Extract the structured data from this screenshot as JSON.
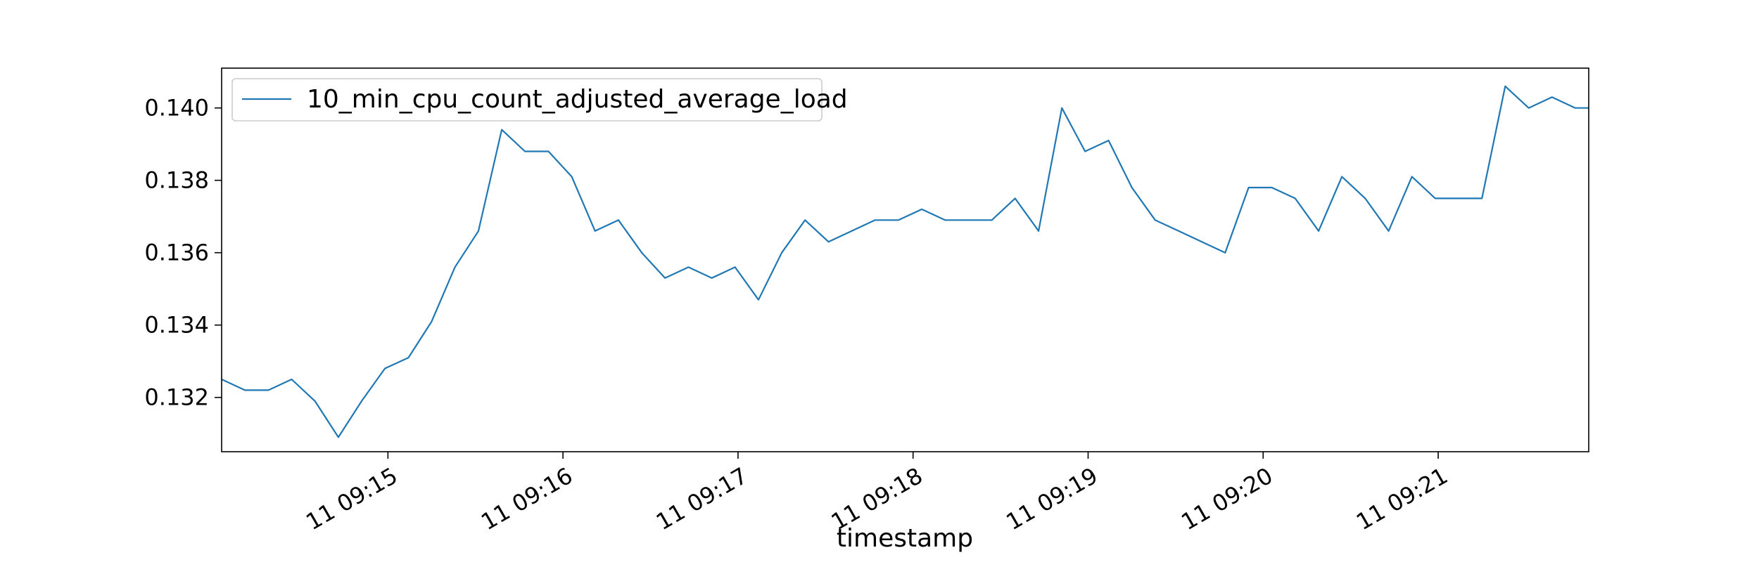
{
  "chart_data": {
    "type": "line",
    "title": "",
    "xlabel": "timestamp",
    "ylabel": "",
    "grid": false,
    "legend": {
      "position": "top-left",
      "entries": [
        "10_min_cpu_count_adjusted_average_load"
      ]
    },
    "x_unit": "minutes after 09:14 (day 11)",
    "xlim": [
      0.05,
      7.86
    ],
    "ylim": [
      0.1305,
      0.1411
    ],
    "x_ticks": [
      {
        "value": 1.0,
        "label": "11 09:15"
      },
      {
        "value": 2.0,
        "label": "11 09:16"
      },
      {
        "value": 3.0,
        "label": "11 09:17"
      },
      {
        "value": 4.0,
        "label": "11 09:18"
      },
      {
        "value": 5.0,
        "label": "11 09:19"
      },
      {
        "value": 6.0,
        "label": "11 09:20"
      },
      {
        "value": 7.0,
        "label": "11 09:21"
      }
    ],
    "y_ticks": [
      {
        "value": 0.132,
        "label": "0.132"
      },
      {
        "value": 0.134,
        "label": "0.134"
      },
      {
        "value": 0.136,
        "label": "0.136"
      },
      {
        "value": 0.138,
        "label": "0.138"
      },
      {
        "value": 0.14,
        "label": "0.140"
      }
    ],
    "series": [
      {
        "name": "10_min_cpu_count_adjusted_average_load",
        "color": "#1f77b4",
        "x": [
          0.05,
          0.183,
          0.317,
          0.45,
          0.583,
          0.717,
          0.85,
          0.983,
          1.117,
          1.25,
          1.383,
          1.517,
          1.65,
          1.783,
          1.917,
          2.05,
          2.183,
          2.317,
          2.45,
          2.583,
          2.717,
          2.85,
          2.983,
          3.117,
          3.25,
          3.383,
          3.517,
          3.65,
          3.783,
          3.917,
          4.05,
          4.183,
          4.317,
          4.45,
          4.583,
          4.717,
          4.85,
          4.983,
          5.117,
          5.25,
          5.383,
          5.517,
          5.65,
          5.783,
          5.917,
          6.05,
          6.183,
          6.317,
          6.45,
          6.583,
          6.717,
          6.85,
          6.983,
          7.117,
          7.25,
          7.383,
          7.517,
          7.65,
          7.783,
          7.86
        ],
        "values": [
          0.1325,
          0.1322,
          0.1322,
          0.1325,
          0.1319,
          0.1309,
          0.1319,
          0.1328,
          0.1331,
          0.1341,
          0.1356,
          0.1366,
          0.1394,
          0.1388,
          0.1388,
          0.1381,
          0.1366,
          0.1369,
          0.136,
          0.1353,
          0.1356,
          0.1353,
          0.1356,
          0.1347,
          0.136,
          0.1369,
          0.1363,
          0.1366,
          0.1369,
          0.1369,
          0.1372,
          0.1369,
          0.1369,
          0.1369,
          0.1375,
          0.1366,
          0.14,
          0.1388,
          0.1391,
          0.1378,
          0.1369,
          0.1366,
          0.1363,
          0.136,
          0.1378,
          0.1378,
          0.1375,
          0.1366,
          0.1381,
          0.1375,
          0.1366,
          0.1381,
          0.1375,
          0.1375,
          0.1375,
          0.1406,
          0.14,
          0.1403,
          0.14,
          0.14
        ]
      }
    ]
  }
}
